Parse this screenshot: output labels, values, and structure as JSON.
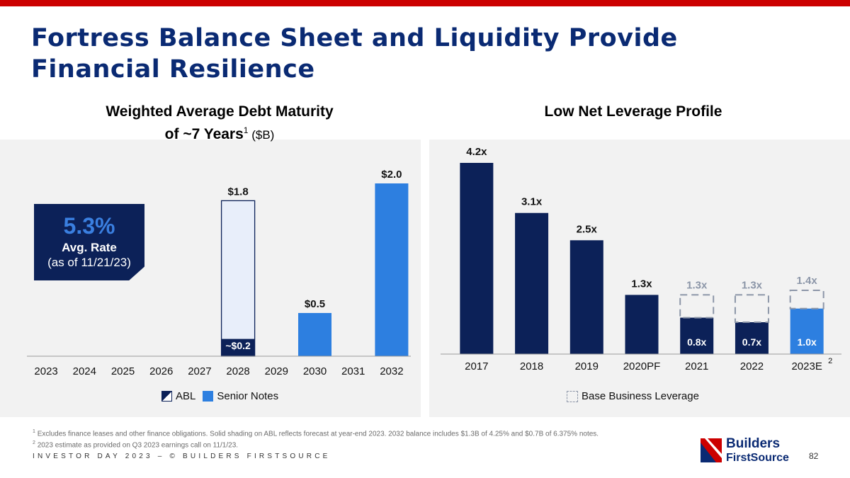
{
  "page": {
    "title": "Fortress Balance Sheet and Liquidity Provide Financial Resilience",
    "footer": "INVESTOR DAY 2023 – © BUILDERS FIRSTSOURCE",
    "page_number": "82",
    "logo": {
      "line1": "Builders",
      "line2": "FirstSource"
    },
    "footnotes": [
      {
        "mark": "1",
        "text": "Excludes finance leases and other finance obligations. Solid shading on ABL reflects forecast at year-end 2023. 2032 balance includes $1.3B of 4.25% and $0.7B of 6.375% notes."
      },
      {
        "mark": "2",
        "text": "2023 estimate as provided on Q3 2023 earnings call on 11/1/23."
      }
    ]
  },
  "colors": {
    "brand_red": "#cc0000",
    "navy": "#0c2158",
    "blue": "#2d7fe0",
    "title_blue": "#0a2a73",
    "light_fill": "#e8eefa",
    "dashed_grey": "#8c96a8"
  },
  "callout": {
    "rate": "5.3%",
    "label": "Avg. Rate",
    "date": "(as of 11/21/23)"
  },
  "legend_left": {
    "abl": "ABL",
    "senior_notes": "Senior Notes"
  },
  "legend_right": {
    "base": "Base Business Leverage"
  },
  "chart_data": [
    {
      "type": "bar",
      "title_line1": "Weighted Average Debt Maturity",
      "title_line2": "of ~7 Years",
      "title_sup": "1",
      "title_unit": " ($B)",
      "categories": [
        "2023",
        "2024",
        "2025",
        "2026",
        "2027",
        "2028",
        "2029",
        "2030",
        "2031",
        "2032"
      ],
      "ylim": [
        0,
        2.0
      ],
      "series": [
        {
          "name": "ABL (solid forecast)",
          "values": [
            0,
            0,
            0,
            0,
            0,
            0.2,
            0,
            0,
            0,
            0
          ]
        },
        {
          "name": "ABL (capacity outline)",
          "values": [
            0,
            0,
            0,
            0,
            0,
            1.8,
            0,
            0,
            0,
            0
          ]
        },
        {
          "name": "Senior Notes",
          "values": [
            0,
            0,
            0,
            0,
            0,
            0,
            0,
            0.5,
            0,
            2.0
          ]
        }
      ],
      "data_labels": [
        {
          "category": "2028",
          "text": "$1.8",
          "value": 1.8,
          "position": "above"
        },
        {
          "category": "2028",
          "text": "~$0.2",
          "value": 0.2,
          "position": "inside"
        },
        {
          "category": "2030",
          "text": "$0.5",
          "value": 0.5,
          "position": "above"
        },
        {
          "category": "2032",
          "text": "$2.0",
          "value": 2.0,
          "position": "above"
        }
      ]
    },
    {
      "type": "bar",
      "title": "Low Net Leverage Profile",
      "categories": [
        "2017",
        "2018",
        "2019",
        "2020PF",
        "2021",
        "2022",
        "2023E"
      ],
      "category_sup": {
        "2023E": "2"
      },
      "ylim": [
        0,
        4.2
      ],
      "series": [
        {
          "name": "Net Leverage",
          "values": [
            4.2,
            3.1,
            2.5,
            1.3,
            0.8,
            0.7,
            1.0
          ]
        },
        {
          "name": "Base Business Leverage",
          "values": [
            null,
            null,
            null,
            null,
            1.3,
            1.3,
            1.4
          ]
        }
      ],
      "labels": [
        "4.2x",
        "3.1x",
        "2.5x",
        "1.3x",
        "0.8x",
        "0.7x",
        "1.0x"
      ],
      "base_labels": [
        null,
        null,
        null,
        null,
        "1.3x",
        "1.3x",
        "1.4x"
      ]
    }
  ]
}
